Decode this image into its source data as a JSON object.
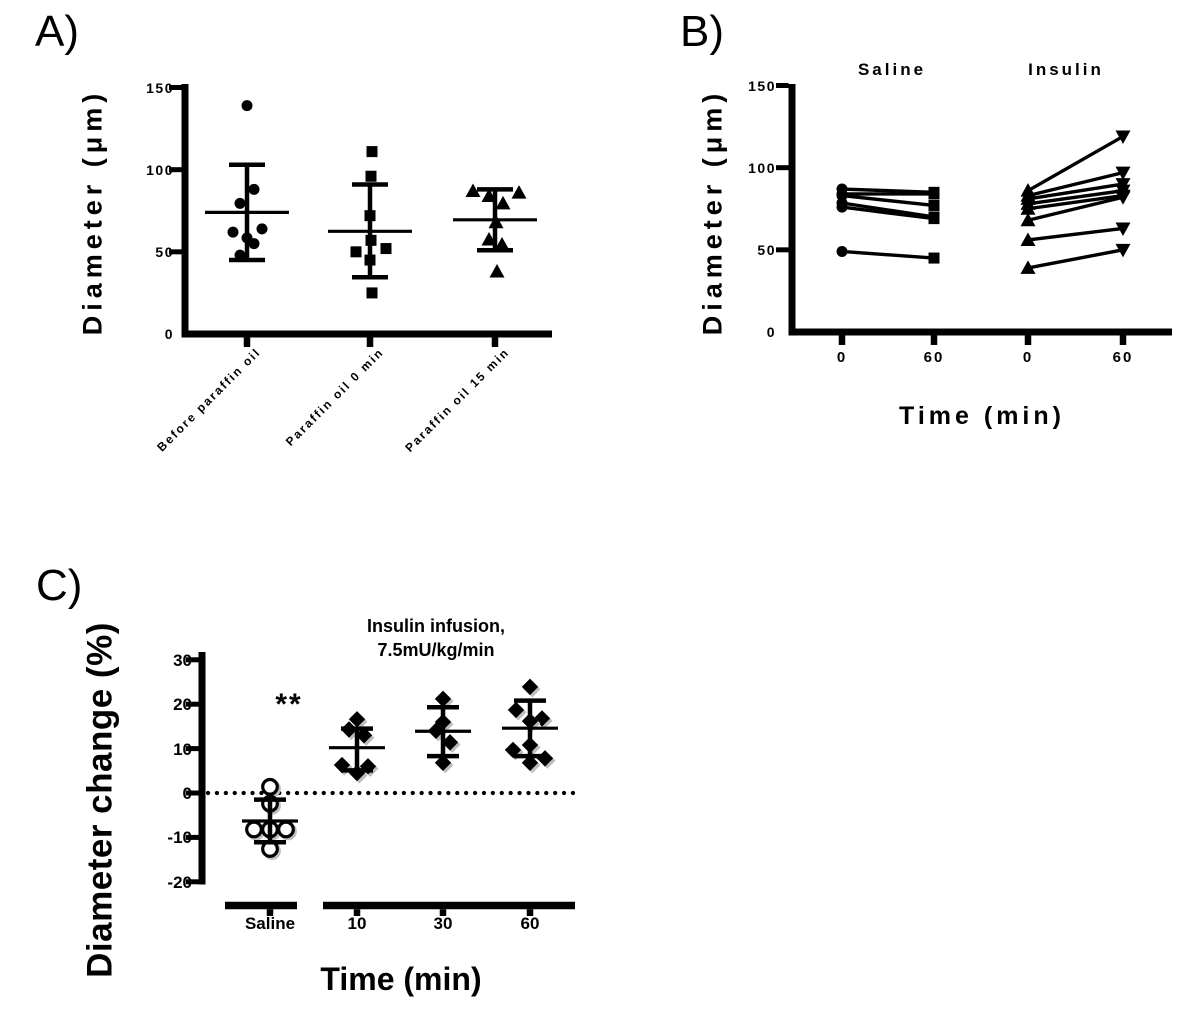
{
  "panels": {
    "a": "A)",
    "b": "B)",
    "c": "C)"
  },
  "colors": {
    "ink": "#000000",
    "background": "#ffffff",
    "shadow": "#bdbdbd"
  },
  "chart_data": [
    {
      "panel": "A",
      "type": "scatter",
      "title": "",
      "xlabel": "",
      "ylabel": "Diameter (μm)",
      "ylim": [
        0,
        150
      ],
      "yticks": [
        0,
        50,
        100,
        150
      ],
      "categories": [
        "Before paraffin oil",
        "Paraffin oil 0 min",
        "Paraffin oil 15 min"
      ],
      "error_bars": "mean ± SD",
      "groups": [
        {
          "category": "Before paraffin oil",
          "marker": "filled-circle",
          "values": [
            139,
            88,
            79.5,
            64,
            62,
            58.5,
            55,
            48
          ],
          "x_offsets": [
            0,
            7,
            -7,
            15,
            -14,
            0,
            7,
            -7
          ],
          "mean": 74,
          "sd_low": 45,
          "sd_high": 103
        },
        {
          "category": "Paraffin oil 0 min",
          "marker": "filled-square",
          "values": [
            111,
            96,
            72,
            57,
            52,
            50,
            45,
            25
          ],
          "x_offsets": [
            2,
            1,
            0,
            1,
            16,
            -14,
            0,
            2
          ],
          "mean": 62.5,
          "sd_low": 34.5,
          "sd_high": 91
        },
        {
          "category": "Paraffin oil 15 min",
          "marker": "filled-triangle-up",
          "values": [
            87,
            86,
            84,
            79.5,
            68,
            57.5,
            54.5,
            38
          ],
          "x_offsets": [
            -22,
            24,
            -6,
            8,
            1,
            -6,
            7,
            2
          ],
          "mean": 69.5,
          "sd_low": 51,
          "sd_high": 88
        }
      ]
    },
    {
      "panel": "B",
      "type": "paired-lines",
      "title": "",
      "xlabel": "Time (min)",
      "ylabel": "Diameter (μm)",
      "ylim": [
        0,
        150
      ],
      "yticks": [
        0,
        50,
        100,
        150
      ],
      "group_titles": [
        "Saline",
        "Insulin"
      ],
      "x_tick_labels": [
        "0",
        "60",
        "0",
        "60"
      ],
      "series": [
        {
          "name": "Saline",
          "marker_t0": "filled-circle",
          "marker_t60": "filled-square",
          "pairs": [
            [
              87,
              85
            ],
            [
              84,
              84
            ],
            [
              83,
              77
            ],
            [
              78.5,
              70
            ],
            [
              76,
              69
            ],
            [
              49,
              45
            ]
          ]
        },
        {
          "name": "Insulin",
          "marker_t0": "filled-triangle-up",
          "marker_t60": "filled-triangle-down",
          "pairs": [
            [
              86,
              119
            ],
            [
              83,
              97
            ],
            [
              81,
              90
            ],
            [
              78,
              86
            ],
            [
              75,
              83
            ],
            [
              68,
              82
            ],
            [
              56,
              63
            ],
            [
              39,
              50
            ]
          ]
        }
      ]
    },
    {
      "panel": "C",
      "type": "scatter",
      "title": "",
      "xlabel": "Time (min)",
      "ylabel": "Diameter change (%)",
      "ylim": [
        -20,
        30
      ],
      "yticks": [
        -20,
        -10,
        0,
        10,
        20,
        30
      ],
      "zero_line": "dotted",
      "significance_label": "**",
      "annotation": [
        "Insulin infusion,",
        "7.5mU/kg/min"
      ],
      "categories": [
        "Saline",
        "10",
        "30",
        "60"
      ],
      "error_bars": "mean ± SD",
      "groups": [
        {
          "category": "Saline",
          "marker": "open-circle",
          "values": [
            1.4,
            -2.4,
            -8.2,
            -8.2,
            -8.2,
            -12.6
          ],
          "x_offsets": [
            0,
            0,
            -16,
            0,
            16,
            0
          ],
          "mean": -6.3,
          "sd_low": -11.1,
          "sd_high": -1.5
        },
        {
          "category": "10",
          "marker": "filled-diamond",
          "values": [
            16.6,
            14.3,
            13,
            6.3,
            6,
            4.5
          ],
          "x_offsets": [
            0,
            -8,
            7,
            -15,
            11,
            0
          ],
          "mean": 10.2,
          "sd_low": 5.1,
          "sd_high": 14.5
        },
        {
          "category": "30",
          "marker": "filled-diamond",
          "values": [
            21.2,
            16,
            14,
            11.4,
            6.8
          ],
          "x_offsets": [
            0,
            0,
            -7,
            7,
            0
          ],
          "mean": 13.9,
          "sd_low": 8.3,
          "sd_high": 19.3
        },
        {
          "category": "60",
          "marker": "filled-diamond",
          "values": [
            23.9,
            18.7,
            16.8,
            16.2,
            10.8,
            9.7,
            7.8,
            6.8
          ],
          "x_offsets": [
            0,
            -14,
            12,
            0,
            0,
            -17,
            15,
            0
          ],
          "mean": 14.6,
          "sd_low": 8.3,
          "sd_high": 20.8
        }
      ]
    }
  ]
}
